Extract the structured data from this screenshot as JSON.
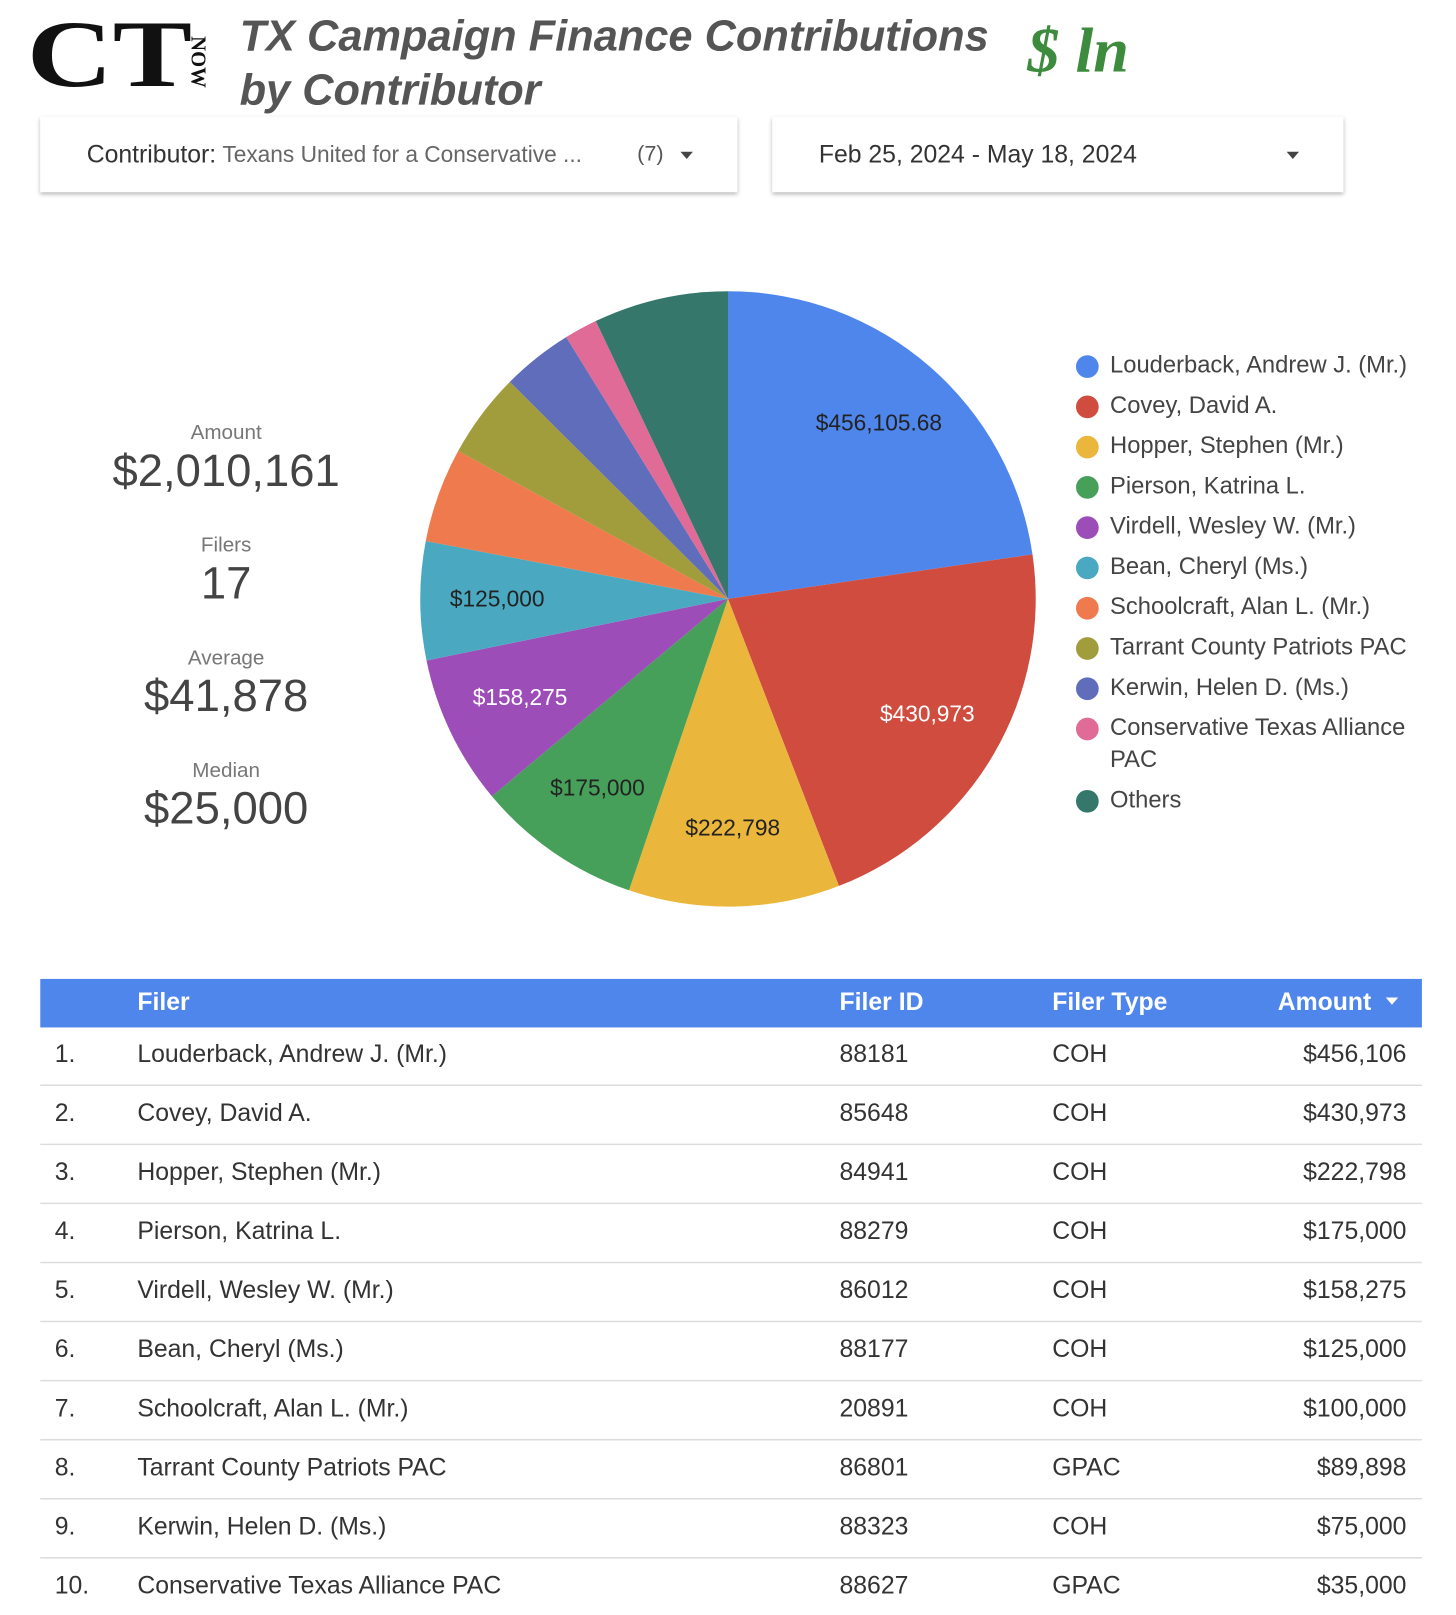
{
  "header": {
    "logo": "CT",
    "logo_sub": "NOW",
    "title_lines": [
      "TX Campaign Finance Contributions",
      "by Contributor"
    ],
    "badge": "$ ln"
  },
  "filters": [
    {
      "label": "Contributor:",
      "value": "Texans United for a Conservative ...",
      "count": "(7)"
    },
    {
      "label": "Feb 25, 2024 - May 18, 2024"
    }
  ],
  "scorecards": [
    {
      "label": "Amount",
      "value": "$2,010,161"
    },
    {
      "label": "Filers",
      "value": "17"
    },
    {
      "label": "Average",
      "value": "$41,878"
    },
    {
      "label": "Median",
      "value": "$25,000"
    }
  ],
  "chart_data": {
    "type": "pie",
    "categories": [
      "Louderback, Andrew J. (Mr.)",
      "Covey, David A.",
      "Hopper, Stephen (Mr.)",
      "Pierson, Katrina L.",
      "Virdell, Wesley W. (Mr.)",
      "Bean, Cheryl (Ms.)",
      "Schoolcraft, Alan L. (Mr.)",
      "Tarrant County Patriots PAC",
      "Kerwin, Helen D. (Ms.)",
      "Conservative Texas Alliance PAC",
      "Others"
    ],
    "values": [
      456105.68,
      430973,
      222798,
      175000,
      158275,
      125000,
      100000,
      89898,
      75000,
      35000,
      142111
    ],
    "value_labels": [
      "$456,105.68",
      "$430,973",
      "$222,798",
      "$175,000",
      "$158,275",
      "$125,000",
      null,
      null,
      null,
      null,
      null
    ],
    "colors": [
      "#4e86ec",
      "#cf4c3e",
      "#ebb63c",
      "#46a05a",
      "#9c4db8",
      "#4aa9c1",
      "#ee7a4e",
      "#a19c3c",
      "#5f6dba",
      "#e06b96",
      "#35786b"
    ],
    "label_colors": [
      "#222222",
      "#ffffff",
      "#222222",
      "#222222",
      "#ffffff",
      "#222222",
      "#222222",
      "#222222",
      "#222222",
      "#222222",
      "#222222"
    ],
    "legend": "right"
  },
  "table": {
    "columns": [
      "Filer",
      "Filer ID",
      "Filer Type",
      "Amount"
    ],
    "rows": [
      [
        "1.",
        "Louderback, Andrew J. (Mr.)",
        "88181",
        "COH",
        "$456,106"
      ],
      [
        "2.",
        "Covey, David A.",
        "85648",
        "COH",
        "$430,973"
      ],
      [
        "3.",
        "Hopper, Stephen (Mr.)",
        "84941",
        "COH",
        "$222,798"
      ],
      [
        "4.",
        "Pierson, Katrina L.",
        "88279",
        "COH",
        "$175,000"
      ],
      [
        "5.",
        "Virdell, Wesley W. (Mr.)",
        "86012",
        "COH",
        "$158,275"
      ],
      [
        "6.",
        "Bean, Cheryl (Ms.)",
        "88177",
        "COH",
        "$125,000"
      ],
      [
        "7.",
        "Schoolcraft, Alan L. (Mr.)",
        "20891",
        "COH",
        "$100,000"
      ],
      [
        "8.",
        "Tarrant County Patriots PAC",
        "86801",
        "GPAC",
        "$89,898"
      ],
      [
        "9.",
        "Kerwin, Helen D. (Ms.)",
        "88323",
        "COH",
        "$75,000"
      ],
      [
        "10.",
        "Conservative Texas Alliance PAC",
        "88627",
        "GPAC",
        "$35,000"
      ]
    ]
  }
}
